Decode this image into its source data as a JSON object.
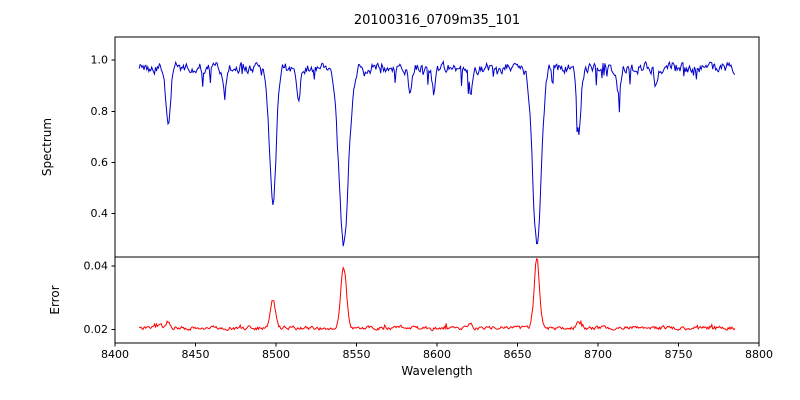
{
  "figure": {
    "background": "#ffffff"
  },
  "chart_data": {
    "type": "line",
    "title": "20100316_0709m35_101",
    "xlabel": "Wavelength",
    "grid": false,
    "legend": "none",
    "xlim": [
      8400,
      8800
    ],
    "xticks": [
      8400,
      8450,
      8500,
      8550,
      8600,
      8650,
      8700,
      8750,
      8800
    ],
    "xticklabels": [
      "8400",
      "8450",
      "8500",
      "8550",
      "8600",
      "8650",
      "8700",
      "8750",
      "8800"
    ],
    "x_data_range": [
      8415,
      8785
    ],
    "panels": [
      {
        "name": "spectrum",
        "ylabel": "Spectrum",
        "ylim": [
          0.231,
          1.09
        ],
        "yticks": [
          0.4,
          0.6,
          0.8,
          1.0
        ],
        "yticklabels": [
          "0.4",
          "0.6",
          "0.8",
          "1.0"
        ],
        "color": "#0000cc",
        "continuum": 0.97,
        "noise_amplitude": 0.022,
        "absorption_lines": [
          {
            "center": 8433,
            "depth": 0.22,
            "width": 1.4
          },
          {
            "center": 8468,
            "depth": 0.1,
            "width": 1.1
          },
          {
            "center": 8498,
            "depth": 0.52,
            "width": 2.1
          },
          {
            "center": 8514,
            "depth": 0.12,
            "width": 1.1
          },
          {
            "center": 8542,
            "depth": 0.69,
            "width": 3.0
          },
          {
            "center": 8583,
            "depth": 0.09,
            "width": 1.0
          },
          {
            "center": 8598,
            "depth": 0.1,
            "width": 1.0
          },
          {
            "center": 8621,
            "depth": 0.11,
            "width": 1.0
          },
          {
            "center": 8662,
            "depth": 0.68,
            "width": 2.7
          },
          {
            "center": 8688,
            "depth": 0.26,
            "width": 1.4
          },
          {
            "center": 8713,
            "depth": 0.09,
            "width": 1.0
          },
          {
            "center": 8736,
            "depth": 0.08,
            "width": 1.0
          }
        ]
      },
      {
        "name": "error",
        "ylabel": "Error",
        "ylim": [
          0.0158,
          0.0428
        ],
        "yticks": [
          0.02,
          0.04
        ],
        "yticklabels": [
          "0.02",
          "0.04"
        ],
        "color": "#ff0000",
        "baseline": 0.0205,
        "noise_amplitude": 0.0006,
        "peaks": [
          {
            "center": 8428,
            "height": 0.0014,
            "width": 1.1
          },
          {
            "center": 8433,
            "height": 0.002,
            "width": 1.1
          },
          {
            "center": 8498,
            "height": 0.009,
            "width": 1.6
          },
          {
            "center": 8542,
            "height": 0.019,
            "width": 1.8
          },
          {
            "center": 8621,
            "height": 0.0012,
            "width": 1.0
          },
          {
            "center": 8662,
            "height": 0.0215,
            "width": 1.6
          },
          {
            "center": 8688,
            "height": 0.002,
            "width": 1.2
          }
        ]
      }
    ]
  }
}
